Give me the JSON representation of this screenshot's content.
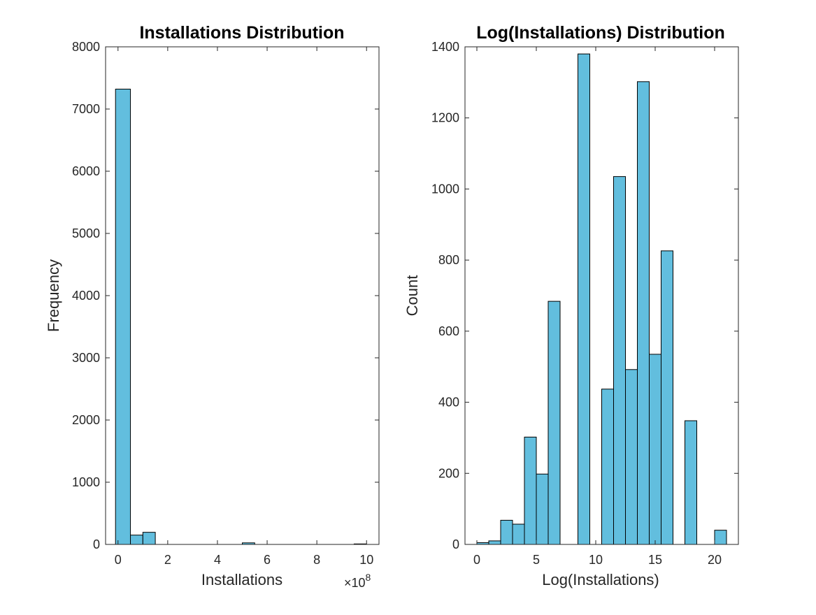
{
  "chart_data": [
    {
      "type": "bar",
      "title": "Installations Distribution",
      "xlabel": "Installations",
      "ylabel": "Frequency",
      "x_exponent": {
        "base": "×10",
        "power": "8"
      },
      "xlim": [
        -0.5,
        10.5
      ],
      "ylim": [
        0,
        8000
      ],
      "xticks": [
        0,
        2,
        4,
        6,
        8,
        10
      ],
      "yticks": [
        0,
        1000,
        2000,
        3000,
        4000,
        5000,
        6000,
        7000,
        8000
      ],
      "bins": [
        {
          "x0": -0.1,
          "x1": 0.5,
          "value": 7320
        },
        {
          "x0": 0.5,
          "x1": 1.0,
          "value": 150
        },
        {
          "x0": 1.0,
          "x1": 1.5,
          "value": 195
        },
        {
          "x0": 5.0,
          "x1": 5.5,
          "value": 25
        },
        {
          "x0": 9.5,
          "x1": 10.0,
          "value": 8
        }
      ],
      "bar_color": "#62bede",
      "grid": false
    },
    {
      "type": "bar",
      "title": "Log(Installations) Distribution",
      "xlabel": "Log(Installations)",
      "ylabel": "Count",
      "xlim": [
        -1,
        22
      ],
      "ylim": [
        0,
        1400
      ],
      "xticks": [
        0,
        5,
        10,
        15,
        20
      ],
      "yticks": [
        0,
        200,
        400,
        600,
        800,
        1000,
        1200,
        1400
      ],
      "bins": [
        {
          "x0": 0.0,
          "x1": 1.0,
          "value": 5
        },
        {
          "x0": 1.0,
          "x1": 2.0,
          "value": 10
        },
        {
          "x0": 2.0,
          "x1": 3.0,
          "value": 68
        },
        {
          "x0": 3.0,
          "x1": 4.0,
          "value": 57
        },
        {
          "x0": 4.0,
          "x1": 5.0,
          "value": 302
        },
        {
          "x0": 5.0,
          "x1": 6.0,
          "value": 198
        },
        {
          "x0": 6.0,
          "x1": 7.0,
          "value": 684
        },
        {
          "x0": 8.5,
          "x1": 9.5,
          "value": 1380
        },
        {
          "x0": 10.5,
          "x1": 11.5,
          "value": 437
        },
        {
          "x0": 11.5,
          "x1": 12.5,
          "value": 1035
        },
        {
          "x0": 12.5,
          "x1": 13.5,
          "value": 492
        },
        {
          "x0": 13.5,
          "x1": 14.5,
          "value": 1302
        },
        {
          "x0": 14.5,
          "x1": 15.5,
          "value": 535
        },
        {
          "x0": 15.5,
          "x1": 16.5,
          "value": 826
        },
        {
          "x0": 17.5,
          "x1": 18.5,
          "value": 348
        },
        {
          "x0": 20.0,
          "x1": 21.0,
          "value": 40
        }
      ],
      "bar_color": "#62bede",
      "grid": false
    }
  ]
}
